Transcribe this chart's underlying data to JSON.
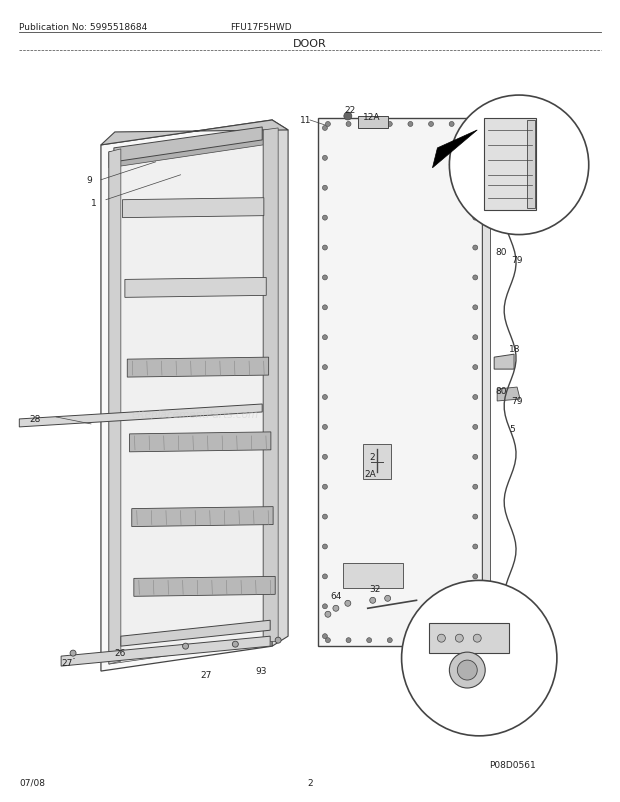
{
  "title": "DOOR",
  "pub_no": "Publication No: 5995518684",
  "model": "FFU17F5HWD",
  "date": "07/08",
  "page": "2",
  "part_id": "P08D0561",
  "bg_color": "#ffffff",
  "lc": "#444444",
  "tc": "#222222",
  "shelf_fc": "#d0d0d0",
  "door_fc": "#e8e8e8",
  "panel_fc": "#f0f0f0"
}
